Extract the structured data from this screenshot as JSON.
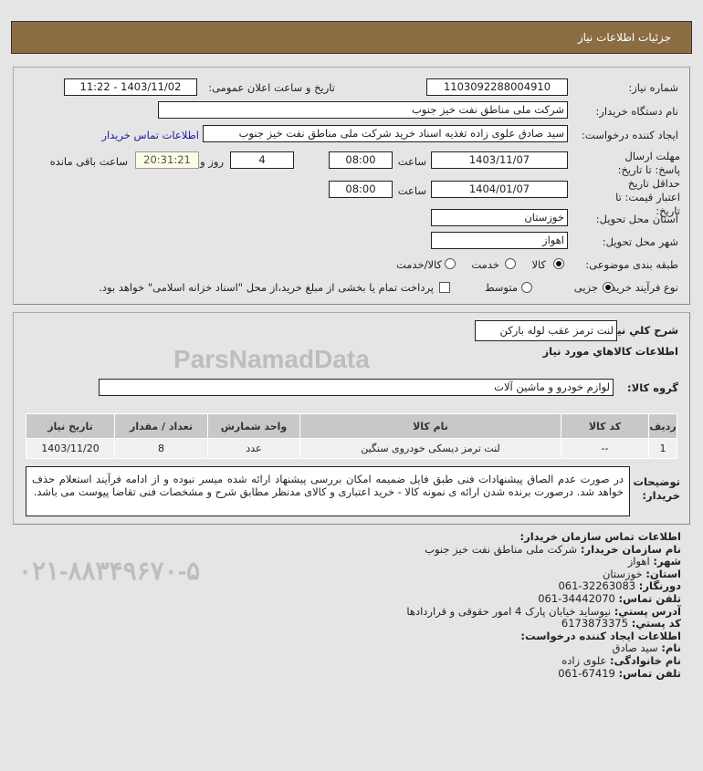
{
  "header": {
    "title": "جزئیات اطلاعات نیاز"
  },
  "form": {
    "need_number_label": "شماره نیاز:",
    "need_number": "1103092288004910",
    "announce_label": "تاریخ و ساعت اعلان عمومی:",
    "announce_value": "1403/11/02 - 11:22",
    "buyer_org_label": "نام دستگاه خریدار:",
    "buyer_org": "شرکت ملی مناطق نفت خیز جنوب",
    "creator_label": "ایجاد کننده درخواست:",
    "creator": "سید صادق علوی زاده  تغذیه اسناد خرید  شرکت ملی مناطق نفت خیز جنوب",
    "contact_link": "اطلاعات تماس خریدار",
    "deadline_label": "مهلت ارسال پاسخ: تا تاریخ:",
    "deadline_date": "1403/11/07",
    "time_label": "ساعت",
    "deadline_time": "08:00",
    "days": "4",
    "days_label": "روز و",
    "remaining": "20:31:21",
    "remaining_label": "ساعت باقی مانده",
    "validity_label": "حداقل تاریخ اعتبار قیمت: تا تاریخ:",
    "validity_date": "1404/01/07",
    "validity_time": "08:00",
    "province_label": "استان محل تحویل:",
    "province": "خوزستان",
    "city_label": "شهر محل تحویل:",
    "city": "اهواز",
    "category_label": "طبقه بندی موضوعی:",
    "category_options": [
      "کالا",
      "خدمت",
      "کالا/خدمت"
    ],
    "category_selected": "کالا",
    "process_label": "نوع فرآیند خرید :",
    "process_options": [
      "جزیی",
      "متوسط"
    ],
    "process_selected": "جزیی",
    "payment_note": "پرداخت تمام یا بخشی از مبلغ خرید،از محل \"اسناد خزانه اسلامی\" خواهد بود."
  },
  "need": {
    "summary_label": "شرح كلي نياز:",
    "summary": "لنت ترمز عقب لوله بارکن",
    "goods_title": "اطلاعات كالاهاي مورد نياز",
    "group_label": "گروه کالا:",
    "group": "لوازم خودرو و ماشین آلات",
    "table": {
      "headers": [
        "ردیف",
        "کد کالا",
        "نام کالا",
        "واحد شمارش",
        "تعداد / مقدار",
        "تاریخ نیاز"
      ],
      "rows": [
        [
          "1",
          "--",
          "لنت ترمز دیسکی خودروی سنگین",
          "عدد",
          "8",
          "1403/11/20"
        ]
      ]
    },
    "notes_label": "توضیحات خریدار:",
    "notes": "در صورت عدم الصاق پیشنهادات فنی طبق فایل ضمیمه امکان بررسی پیشنهاد ارائه شده میسر نبوده و از ادامه فرآیند استعلام حذف خواهد شد. درصورت برنده شدن ارائه ی نمونه کالا - خرید اعتباری و کالای مدنظر مطابق شرح و مشخصات فنی تقاضا پیوست می باشد."
  },
  "contact": {
    "title": "اطلاعات تماس سازمان خریدار:",
    "org_label": "نام سازمان خریدار:",
    "org": "شرکت ملی مناطق نفت خیز جنوب",
    "city_label": "شهر:",
    "city": "اهواز",
    "province_label": "استان:",
    "province": "خوزستان",
    "fax_label": "دورنگار:",
    "fax": "061-32263083",
    "phone_label": "تلفن تماس:",
    "phone": "061-34442070",
    "address_label": "آدرس پستي:",
    "address": "نیوساید خیابان پارک 4 امور حقوقی و قراردادها",
    "postal_label": "کد پستي:",
    "postal": "6173873375",
    "creator_title": "اطلاعات ایجاد کننده درخواست:",
    "name_label": "نام:",
    "name": "سید صادق",
    "family_label": "نام خانوادگی:",
    "family": "علوی زاده",
    "creator_phone_label": "تلفن تماس:",
    "creator_phone": "061-67419"
  },
  "watermark": {
    "brand": "ParsNamadData",
    "phone": "۰۲۱-۸۸۳۴۹۶۷۰-۵"
  }
}
